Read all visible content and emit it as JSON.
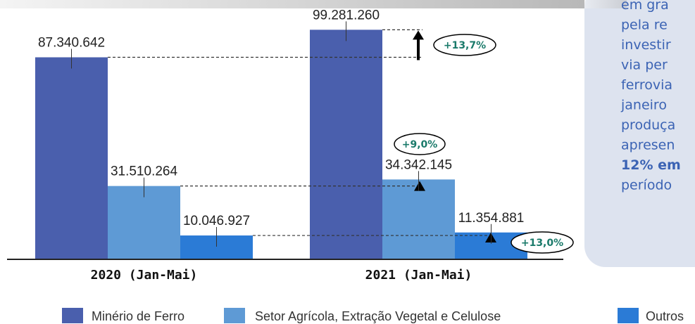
{
  "chart_data": {
    "type": "bar",
    "categories": [
      "2020 (Jan-Mai)",
      "2021 (Jan-Mai)"
    ],
    "series": [
      {
        "name": "Minério de Ferro",
        "color": "#4a5fad",
        "values": [
          87340642,
          99281260
        ],
        "value_labels": [
          "87.340.642",
          "99.281.260"
        ]
      },
      {
        "name": "Setor Agrícola, Extração Vegetal e Celulose",
        "color": "#5e9ad5",
        "values": [
          31510264,
          34342145
        ],
        "value_labels": [
          "31.510.264",
          "34.342.145"
        ]
      },
      {
        "name": "Outros",
        "color": "#2b7bd6",
        "values": [
          10046927,
          11354881
        ],
        "value_labels": [
          "10.046.927",
          "11.354.881"
        ]
      }
    ],
    "ylim": [
      0,
      100000000
    ],
    "annotations": [
      "+13,7%",
      "+9,0%",
      "+13,0%"
    ],
    "side_text": [
      "em gra",
      "pela re",
      "investir",
      "via per",
      "ferrovia",
      "janeiro",
      "produça",
      "apresen",
      "12% em",
      "período"
    ]
  }
}
